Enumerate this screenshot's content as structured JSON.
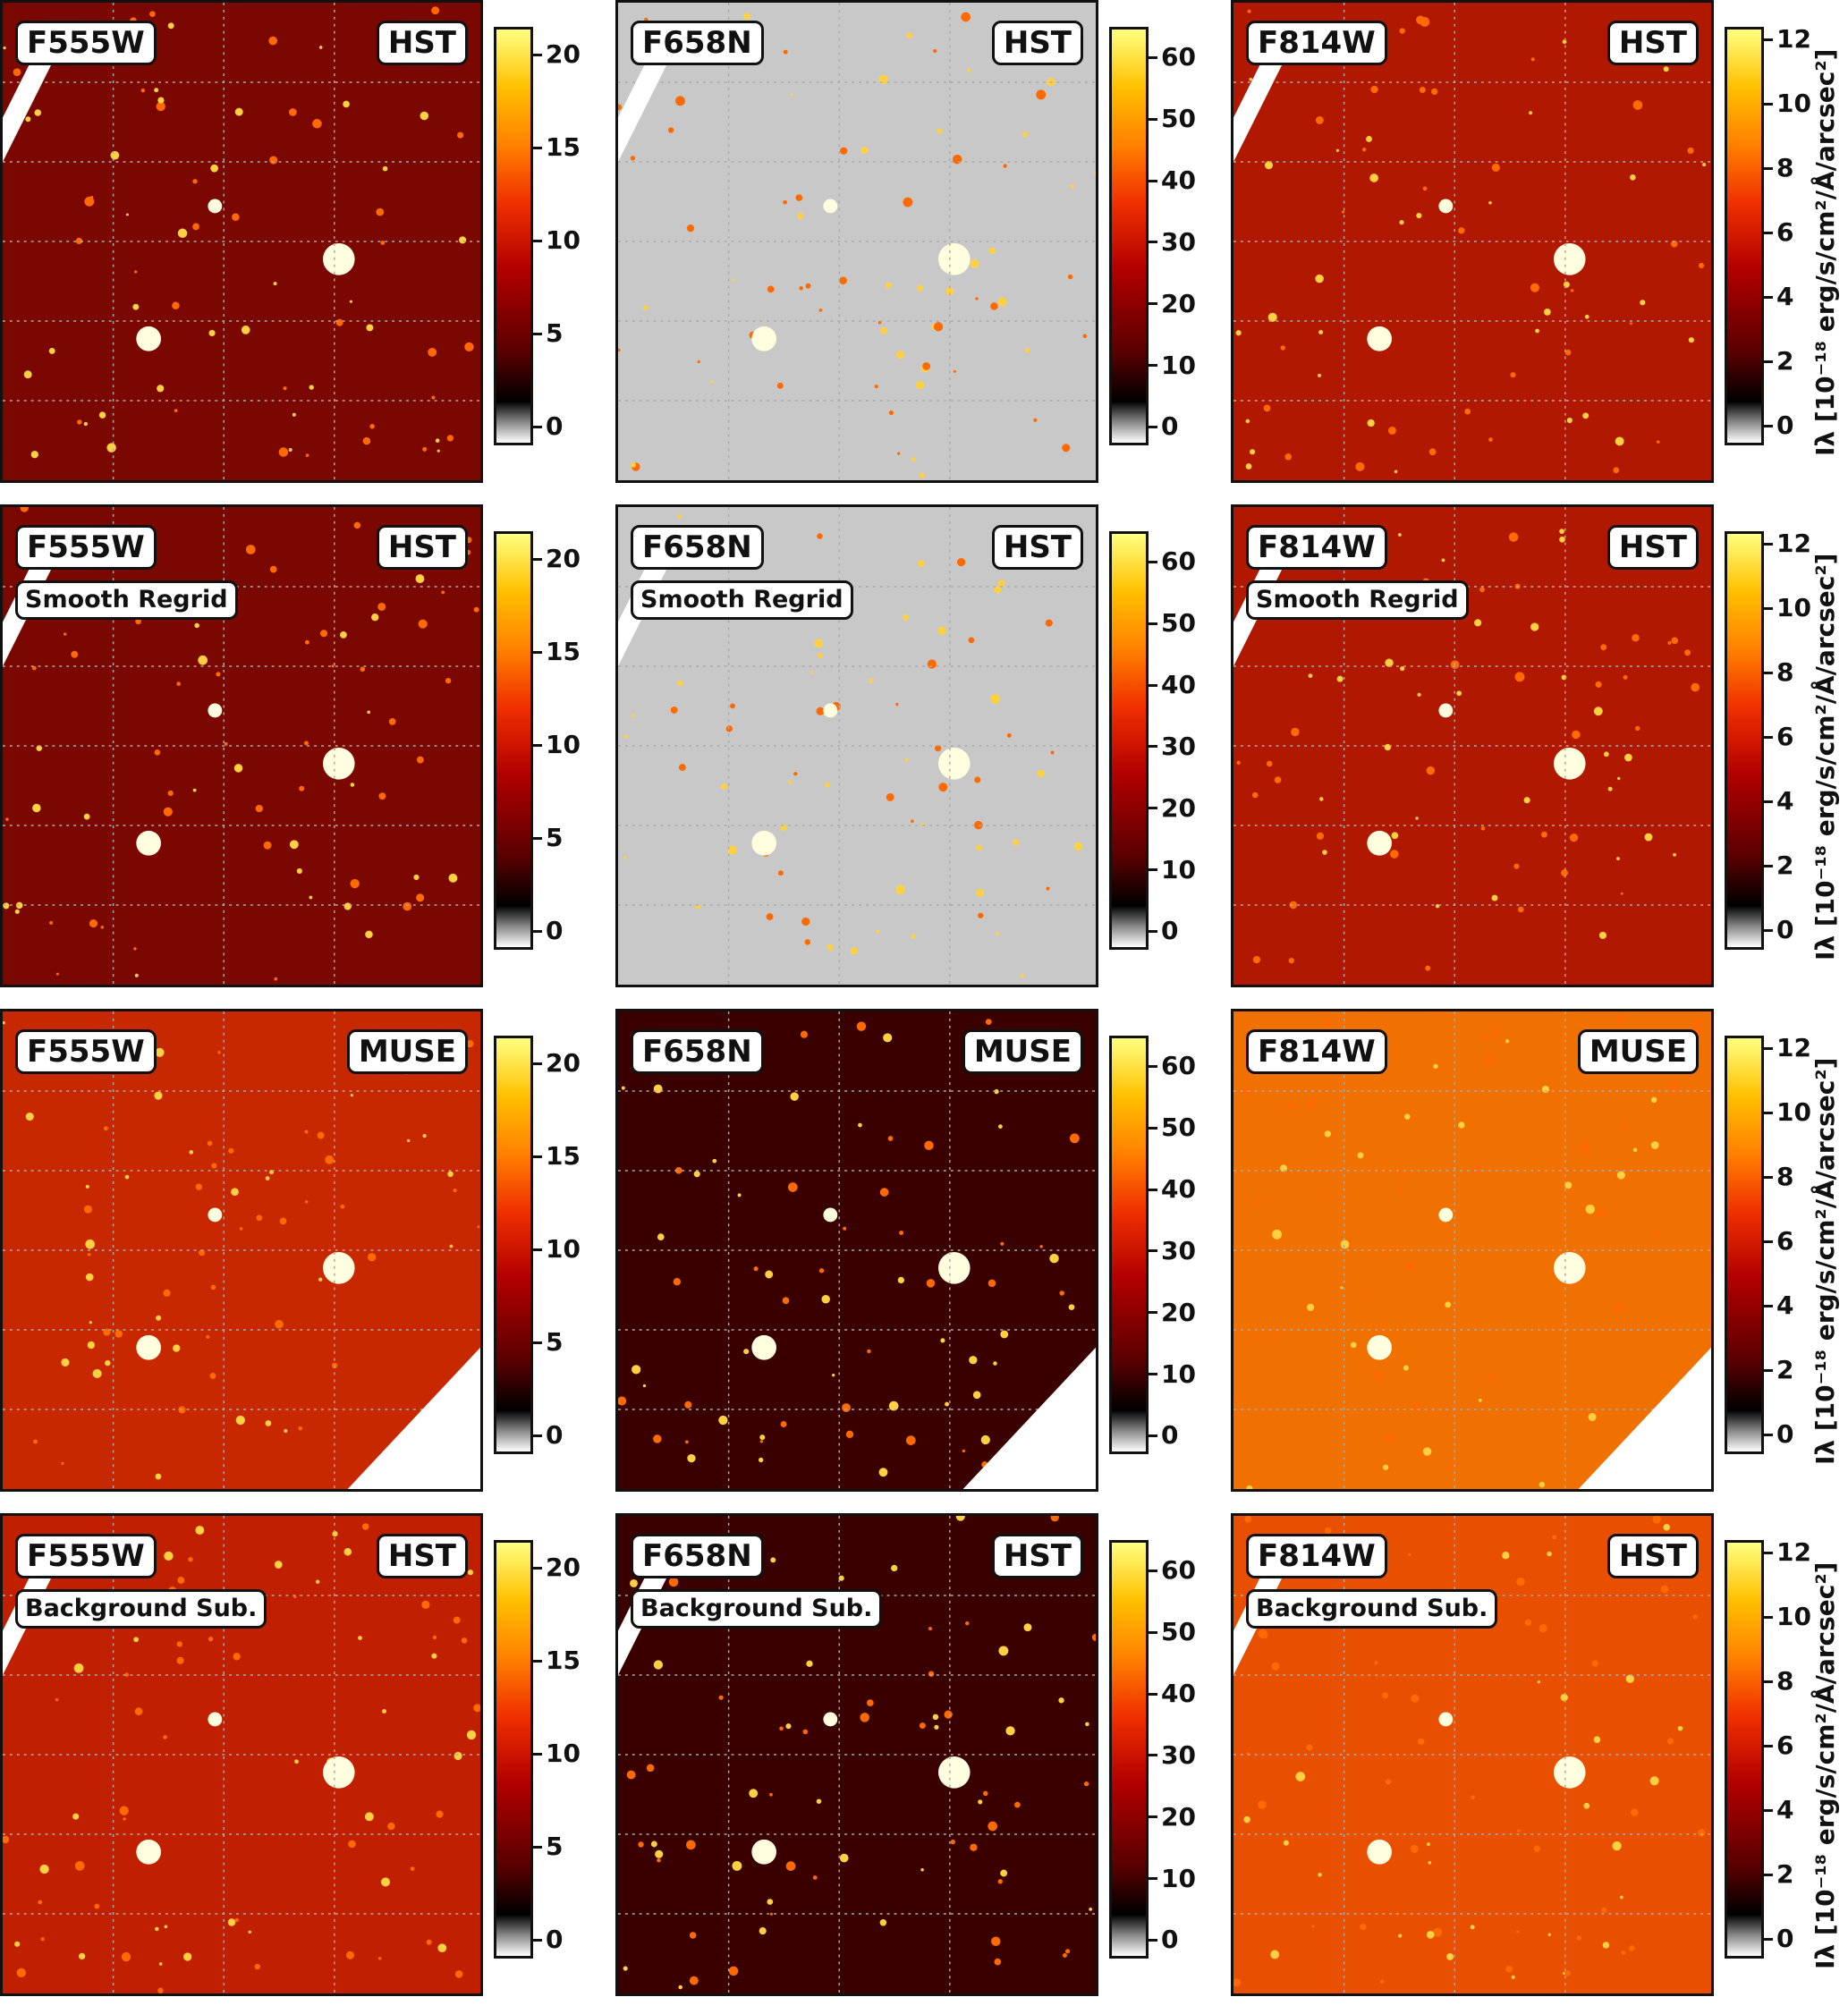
{
  "columns": [
    {
      "filter": "F555W",
      "ticks": [
        "0",
        "5",
        "10",
        "15",
        "20"
      ],
      "vmax": 21.5,
      "vmin": -1.0
    },
    {
      "filter": "F658N",
      "ticks": [
        "0",
        "10",
        "20",
        "30",
        "40",
        "50",
        "60"
      ],
      "vmax": 65,
      "vmin": -3
    },
    {
      "filter": "F814W",
      "ticks": [
        "0",
        "2",
        "4",
        "6",
        "8",
        "10",
        "12"
      ],
      "vmax": 12.4,
      "vmin": -0.6
    }
  ],
  "rows": [
    {
      "source": "HST",
      "subtitle": ""
    },
    {
      "source": "HST",
      "subtitle": "Smooth Regrid"
    },
    {
      "source": "MUSE",
      "subtitle": ""
    },
    {
      "source": "HST",
      "subtitle": "Background Sub."
    }
  ],
  "colorbar_label": "Iλ [10⁻¹⁸ erg/s/cm²/Å/arcsec²]",
  "colormap": {
    "low": "#ffffff",
    "mid": "#000000",
    "high": "#ffff80",
    "accent": "#ff4000"
  }
}
